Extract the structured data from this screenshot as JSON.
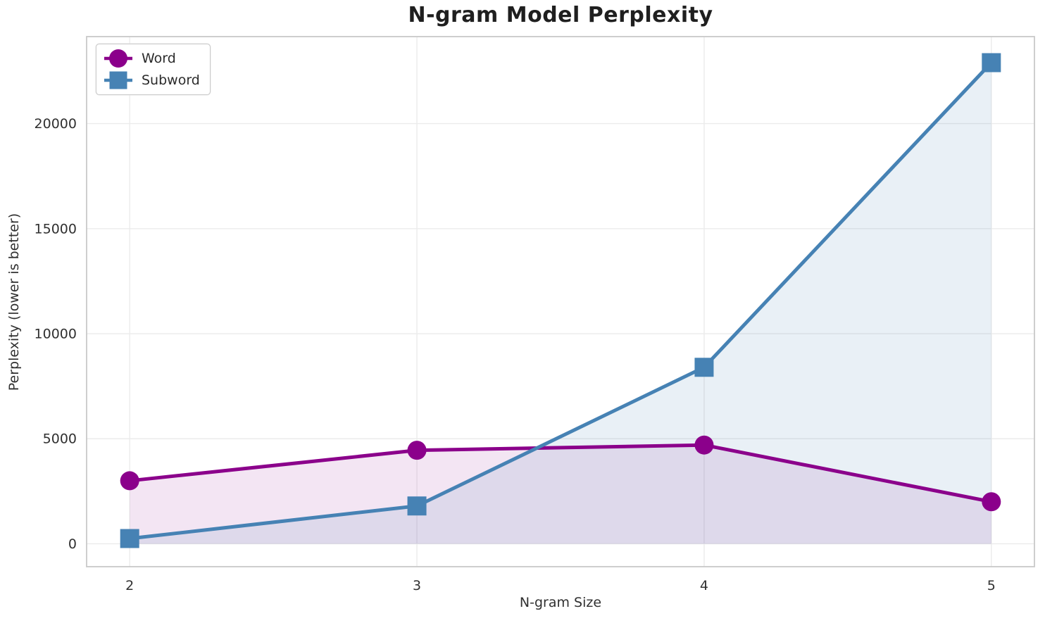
{
  "chart_data": {
    "type": "line",
    "title": "N-gram Model Perplexity",
    "xlabel": "N-gram Size",
    "ylabel": "Perplexity (lower is better)",
    "x": [
      2,
      3,
      4,
      5
    ],
    "x_tick_labels": [
      "2",
      "3",
      "4",
      "5"
    ],
    "y_ticks": [
      0,
      5000,
      10000,
      15000,
      20000
    ],
    "y_tick_labels": [
      "0",
      "5000",
      "10000",
      "15000",
      "20000"
    ],
    "series": [
      {
        "name": "Word",
        "marker": "circle",
        "color": "#8B008B",
        "fill_opacity": 0.1,
        "values": [
          3000,
          4450,
          4700,
          2000
        ]
      },
      {
        "name": "Subword",
        "marker": "square",
        "color": "#4682B4",
        "fill_opacity": 0.12,
        "values": [
          250,
          1800,
          8400,
          22900
        ]
      }
    ],
    "xlim": [
      1.85,
      5.15
    ],
    "ylim": [
      -1090,
      24140
    ],
    "grid": true,
    "legend_position": "upper left",
    "area_baseline": 0,
    "colors": {
      "grid": "#ebebeb",
      "spine": "#c9c9c9",
      "tick_text": "#303030",
      "title_text": "#1f1f1f"
    }
  }
}
